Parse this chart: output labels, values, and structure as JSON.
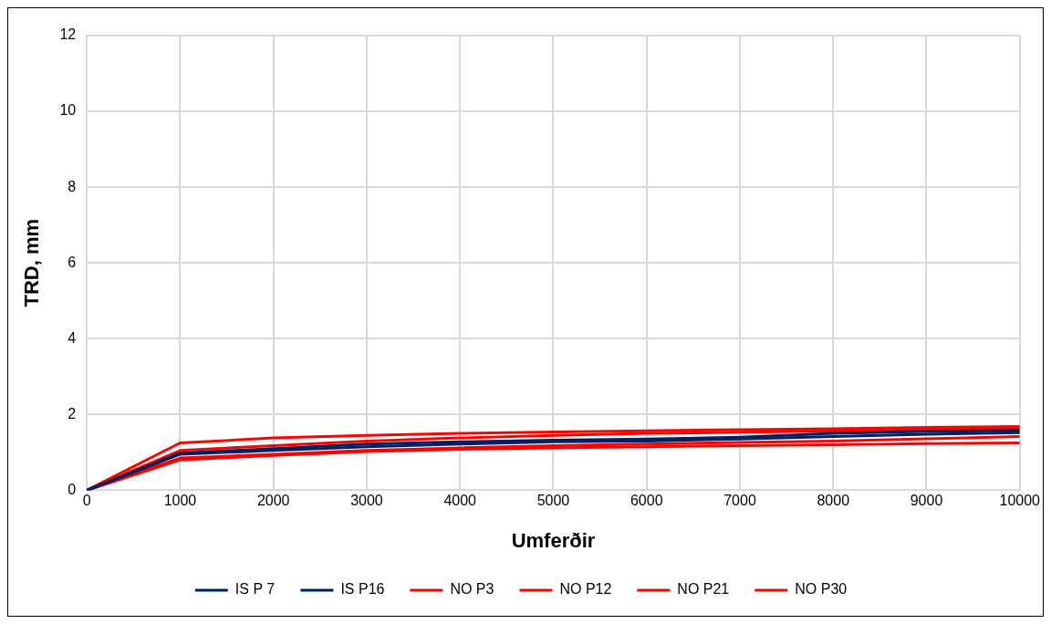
{
  "chart_data": {
    "type": "line",
    "xlabel": "Umferðir",
    "ylabel": "TRD, mm",
    "x": [
      0,
      1000,
      2000,
      3000,
      4000,
      5000,
      6000,
      7000,
      8000,
      9000,
      10000
    ],
    "series": [
      {
        "name": "IS P 7",
        "color": "#002060",
        "values": [
          0,
          0.98,
          1.1,
          1.22,
          1.28,
          1.32,
          1.35,
          1.4,
          1.5,
          1.55,
          1.58
        ]
      },
      {
        "name": "IS P16",
        "color": "#002060",
        "values": [
          0,
          0.95,
          1.05,
          1.15,
          1.22,
          1.28,
          1.3,
          1.35,
          1.42,
          1.48,
          1.52
        ]
      },
      {
        "name": "NO P3",
        "color": "#ff0000",
        "values": [
          0,
          1.25,
          1.38,
          1.45,
          1.5,
          1.54,
          1.57,
          1.6,
          1.62,
          1.66,
          1.68
        ]
      },
      {
        "name": "NO P12",
        "color": "#ff0000",
        "values": [
          0,
          1.05,
          1.18,
          1.3,
          1.38,
          1.45,
          1.5,
          1.53,
          1.56,
          1.6,
          1.63
        ]
      },
      {
        "name": "NO P21",
        "color": "#ff0000",
        "values": [
          0,
          0.85,
          0.95,
          1.05,
          1.12,
          1.18,
          1.22,
          1.26,
          1.3,
          1.36,
          1.42
        ]
      },
      {
        "name": "NO P30",
        "color": "#ff0000",
        "values": [
          0,
          0.8,
          0.92,
          1.02,
          1.08,
          1.12,
          1.15,
          1.18,
          1.2,
          1.23,
          1.25
        ]
      }
    ],
    "xlim": [
      0,
      10000
    ],
    "xticks": [
      0,
      1000,
      2000,
      3000,
      4000,
      5000,
      6000,
      7000,
      8000,
      9000,
      10000
    ],
    "ylim": [
      0,
      12
    ],
    "yticks": [
      0,
      2,
      4,
      6,
      8,
      10,
      12
    ],
    "grid": true,
    "legend": "bottom",
    "marker": "none",
    "line_style": "solid"
  }
}
